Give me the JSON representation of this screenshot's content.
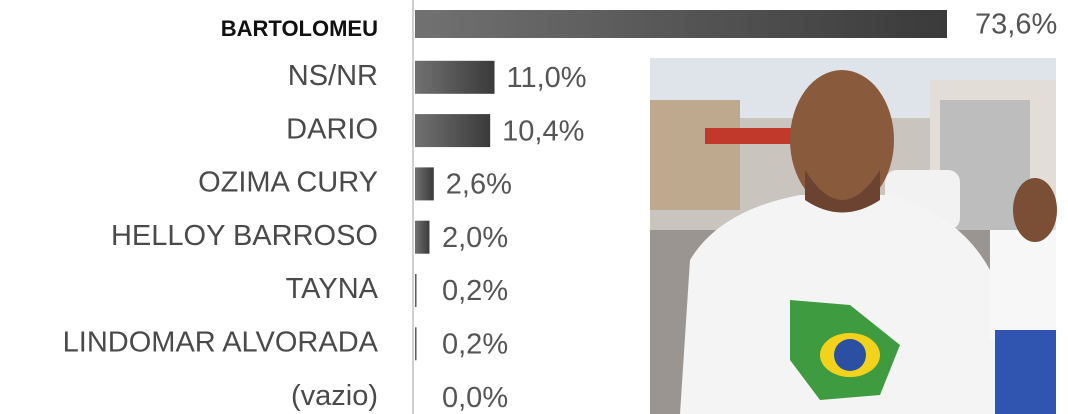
{
  "chart_data": {
    "type": "bar",
    "orientation": "horizontal",
    "categories": [
      "BARTOLOMEU",
      "NS/NR",
      "DARIO",
      "OZIMA CURY",
      "HELLOY BARROSO",
      "TAYNA",
      "LINDOMAR ALVORADA",
      "(vazio)"
    ],
    "values": [
      73.6,
      11.0,
      10.4,
      2.6,
      2.0,
      0.2,
      0.2,
      0.0
    ],
    "value_labels": [
      "73,6%",
      "11,0%",
      "10,4%",
      "2,6%",
      "2,0%",
      "0,2%",
      "0,2%",
      "0,0%"
    ],
    "color": "#3a3a3a"
  }
}
